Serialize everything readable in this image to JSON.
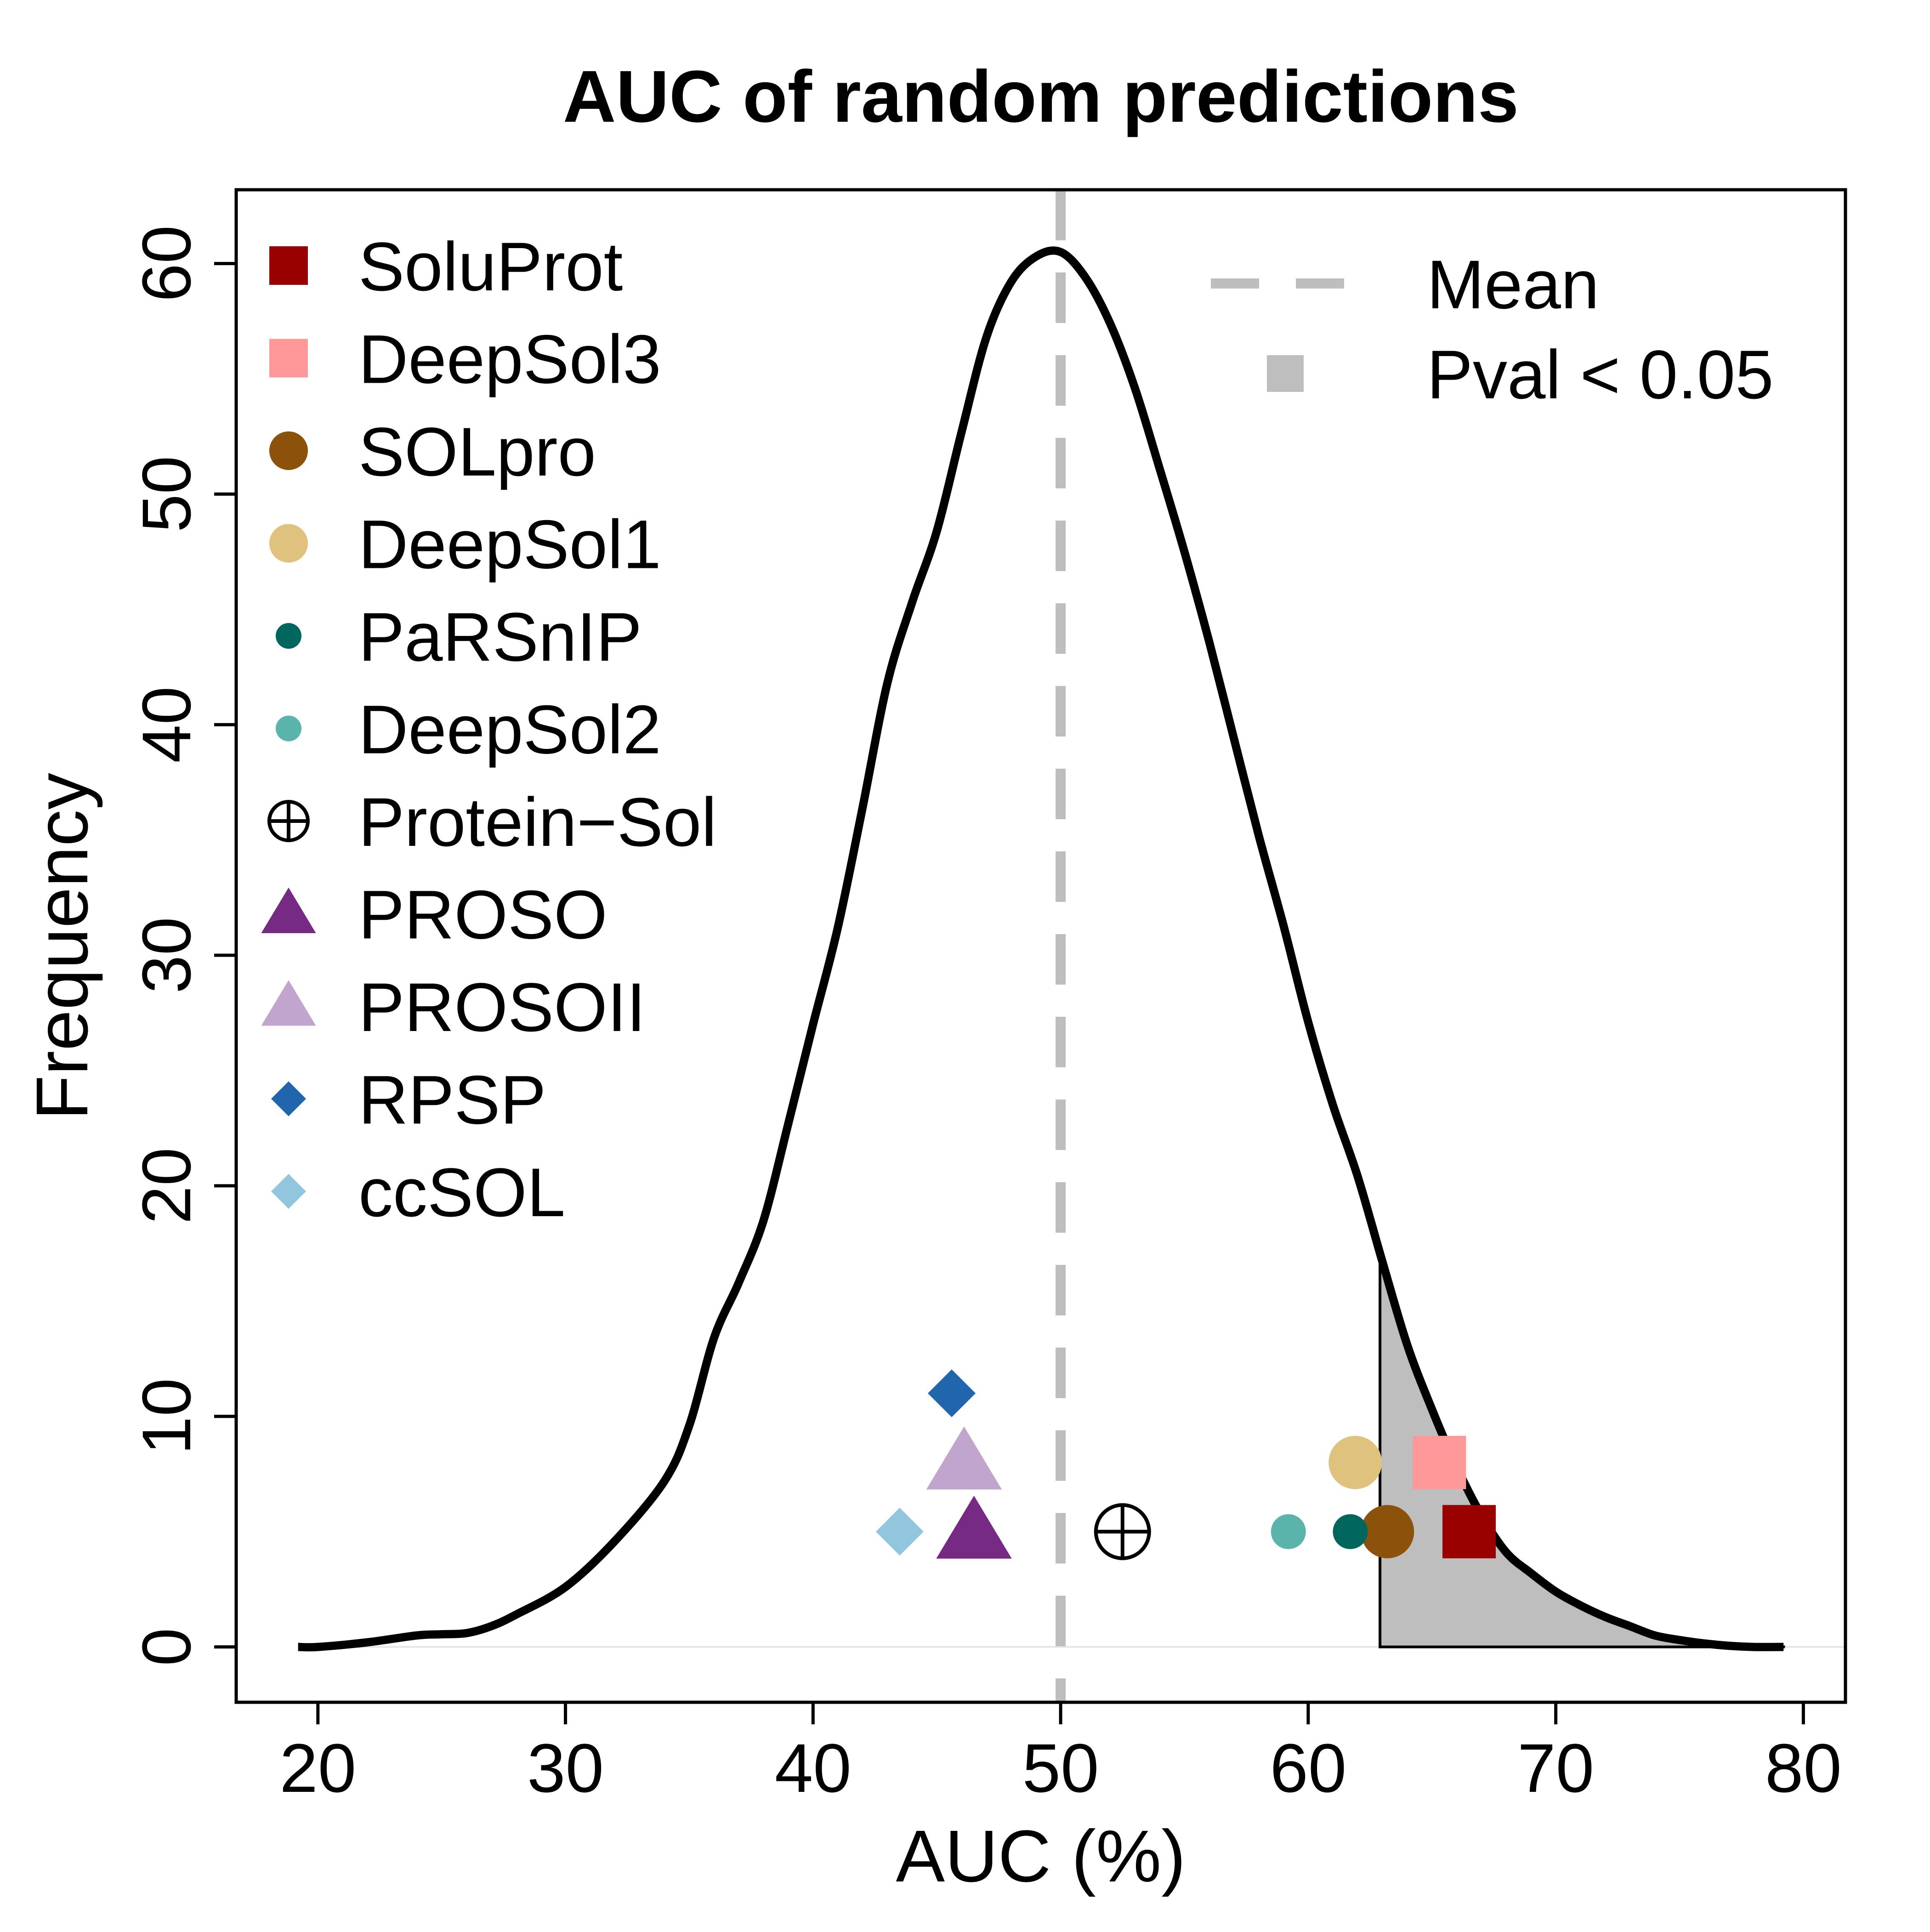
{
  "chart_data": {
    "type": "density",
    "title": "AUC of random predictions",
    "xlabel": "AUC (%)",
    "ylabel": "Frequency",
    "xlim": [
      16.7,
      81.7
    ],
    "ylim": [
      -2.4,
      63.2
    ],
    "xticks": [
      20,
      30,
      40,
      50,
      60,
      70,
      80
    ],
    "yticks": [
      0,
      10,
      20,
      30,
      40,
      50,
      60
    ],
    "grid": false,
    "density_curve": {
      "x": [
        19.2,
        20,
        22,
        24,
        25,
        26,
        27,
        28,
        30,
        32,
        34,
        35,
        36,
        37,
        38,
        39,
        40,
        41,
        42,
        43,
        44,
        45,
        46,
        47,
        48,
        49,
        50,
        51,
        52,
        53,
        54,
        55,
        56,
        57,
        58,
        59,
        60,
        61,
        62,
        63,
        64,
        65,
        66,
        67,
        68,
        69,
        70,
        71,
        72,
        73,
        74,
        75,
        76,
        77,
        78,
        79.2
      ],
      "y": [
        0,
        0,
        0.2,
        0.5,
        0.55,
        0.6,
        0.9,
        1.4,
        2.6,
        4.6,
        7.2,
        9.6,
        13.4,
        15.8,
        18.5,
        22.7,
        27,
        31.2,
        36.4,
        41.8,
        45.3,
        48.4,
        52.7,
        56.8,
        59.2,
        60.3,
        60.5,
        59.4,
        57.4,
        54.6,
        51.1,
        47.5,
        43.6,
        39.4,
        35.2,
        31.3,
        27.1,
        23.5,
        20.4,
        16.7,
        13.1,
        10.3,
        7.8,
        5.7,
        4.1,
        3.2,
        2.4,
        1.8,
        1.3,
        0.9,
        0.5,
        0.3,
        0.15,
        0.05,
        0,
        0
      ]
    },
    "mean": 50,
    "significance_threshold_x": 62.9,
    "colors": {
      "curve": "#000000",
      "mean_line": "#bebebe",
      "shaded_region": "#bebebe"
    },
    "series": [
      {
        "name": "SoluProt",
        "x": 66.5,
        "y": 5,
        "marker": "square",
        "color": "#990000",
        "size": "large"
      },
      {
        "name": "DeepSol3",
        "x": 65.3,
        "y": 8,
        "marker": "square",
        "color": "#ff9999",
        "size": "large"
      },
      {
        "name": "SOLpro",
        "x": 63.2,
        "y": 5,
        "marker": "circle",
        "color": "#8c510a",
        "size": "large"
      },
      {
        "name": "DeepSol1",
        "x": 61.9,
        "y": 8,
        "marker": "circle",
        "color": "#dfc27d",
        "size": "large"
      },
      {
        "name": "PaRSnIP",
        "x": 61.7,
        "y": 5,
        "marker": "circle",
        "color": "#01665e",
        "size": "small"
      },
      {
        "name": "DeepSol2",
        "x": 59.2,
        "y": 5,
        "marker": "circle",
        "color": "#5ab4ac",
        "size": "small"
      },
      {
        "name": "Protein−Sol",
        "x": 52.5,
        "y": 5,
        "marker": "circle-plus",
        "color": "#000000",
        "size": "large"
      },
      {
        "name": "PROSO",
        "x": 46.5,
        "y": 5,
        "marker": "triangle",
        "color": "#762a83",
        "size": "large"
      },
      {
        "name": "PROSOII",
        "x": 46.1,
        "y": 8,
        "marker": "triangle",
        "color": "#c2a5cf",
        "size": "large"
      },
      {
        "name": "RPSP",
        "x": 45.6,
        "y": 11,
        "marker": "diamond",
        "color": "#2166ac",
        "size": "medium"
      },
      {
        "name": "ccSOL",
        "x": 43.5,
        "y": 5,
        "marker": "diamond",
        "color": "#92c5de",
        "size": "medium"
      }
    ],
    "legend_models": {
      "placement": "top-left"
    },
    "legend_reference": {
      "placement": "top-right",
      "entries": [
        {
          "label": "Mean",
          "symbol": "dashed-line",
          "color": "#bebebe"
        },
        {
          "label": "Pval < 0.05",
          "symbol": "square",
          "color": "#bebebe"
        }
      ]
    }
  }
}
